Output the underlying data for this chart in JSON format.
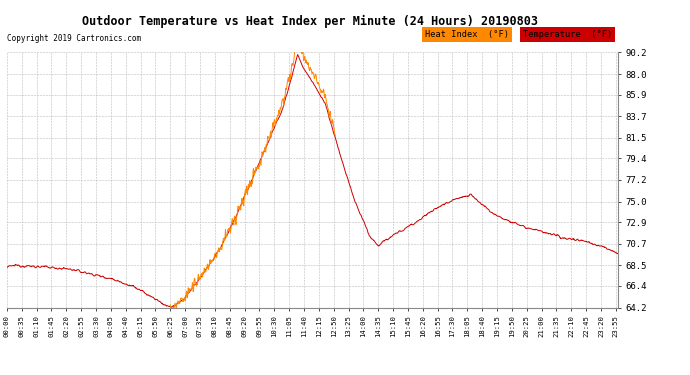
{
  "title": "Outdoor Temperature vs Heat Index per Minute (24 Hours) 20190803",
  "copyright": "Copyright 2019 Cartronics.com",
  "temp_color": "#cc0000",
  "heat_color": "#ff8800",
  "background_color": "#ffffff",
  "grid_color": "#bbbbbb",
  "ylim": [
    64.2,
    90.2
  ],
  "yticks": [
    64.2,
    66.4,
    68.5,
    70.7,
    72.9,
    75.0,
    77.2,
    79.4,
    81.5,
    83.7,
    85.9,
    88.0,
    90.2
  ],
  "legend_heat_bg": "#ff8800",
  "legend_temp_bg": "#cc0000",
  "legend_heat_label": "Heat Index  (°F)",
  "legend_temp_label": "Temperature  (°F)",
  "tick_interval": 35,
  "n_minutes": 1440
}
